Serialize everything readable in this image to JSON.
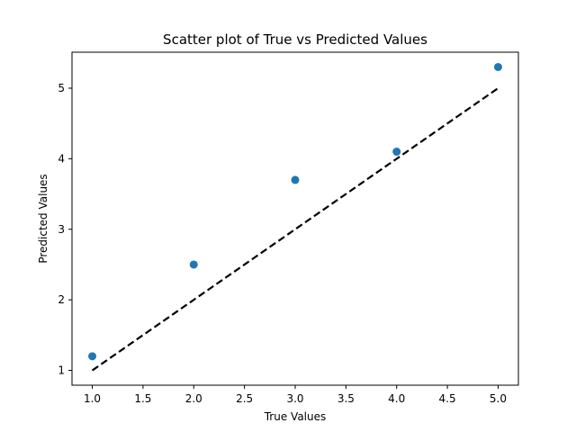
{
  "chart_data": {
    "type": "scatter",
    "title": "Scatter plot of True vs Predicted Values",
    "xlabel": "True Values",
    "ylabel": "Predicted Values",
    "xlim": [
      0.8,
      5.2
    ],
    "ylim": [
      0.79,
      5.51
    ],
    "xticks": [
      "1.0",
      "1.5",
      "2.0",
      "2.5",
      "3.0",
      "3.5",
      "4.0",
      "4.5",
      "5.0"
    ],
    "yticks": [
      "1",
      "2",
      "3",
      "4",
      "5"
    ],
    "grid": false,
    "series": [
      {
        "type": "scatter",
        "x": [
          1,
          2,
          3,
          4,
          5
        ],
        "y": [
          1.2,
          2.5,
          3.7,
          4.1,
          5.3
        ],
        "color": "#1f77b4"
      },
      {
        "type": "line",
        "style": "dashed",
        "x": [
          1,
          5
        ],
        "y": [
          1,
          5
        ],
        "color": "#000000"
      }
    ]
  }
}
